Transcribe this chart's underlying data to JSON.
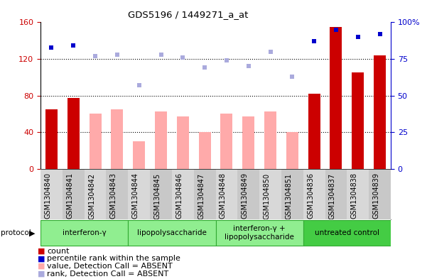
{
  "title": "GDS5196 / 1449271_a_at",
  "samples": [
    "GSM1304840",
    "GSM1304841",
    "GSM1304842",
    "GSM1304843",
    "GSM1304844",
    "GSM1304845",
    "GSM1304846",
    "GSM1304847",
    "GSM1304848",
    "GSM1304849",
    "GSM1304850",
    "GSM1304851",
    "GSM1304836",
    "GSM1304837",
    "GSM1304838",
    "GSM1304839"
  ],
  "count_values": [
    65,
    77,
    null,
    null,
    null,
    null,
    null,
    null,
    null,
    null,
    null,
    null,
    82,
    155,
    105,
    124
  ],
  "absent_values": [
    null,
    null,
    60,
    65,
    30,
    63,
    57,
    40,
    60,
    57,
    63,
    40,
    null,
    null,
    null,
    null
  ],
  "percentile_rank_pct": [
    83,
    84,
    null,
    null,
    null,
    null,
    null,
    null,
    null,
    null,
    null,
    null,
    87,
    95,
    90,
    92
  ],
  "absent_rank_pct": [
    null,
    null,
    77,
    78,
    57,
    78,
    76,
    69,
    74,
    70,
    80,
    63,
    null,
    null,
    null,
    null
  ],
  "left_ylim": [
    0,
    160
  ],
  "right_ylim": [
    0,
    100
  ],
  "left_yticks": [
    0,
    40,
    80,
    120,
    160
  ],
  "right_yticks": [
    0,
    25,
    50,
    75,
    100
  ],
  "right_yticklabels": [
    "0",
    "25",
    "50",
    "75",
    "100%"
  ],
  "groups": [
    {
      "label": "interferon-γ",
      "start": 0,
      "end": 4,
      "color": "#90ee90"
    },
    {
      "label": "lipopolysaccharide",
      "start": 4,
      "end": 8,
      "color": "#90ee90"
    },
    {
      "label": "interferon-γ +\nlipopolysaccharide",
      "start": 8,
      "end": 12,
      "color": "#90ee90"
    },
    {
      "label": "untreated control",
      "start": 12,
      "end": 16,
      "color": "#44cc44"
    }
  ],
  "bg_color": "#ffffff",
  "plot_bg": "#ffffff",
  "bar_width": 0.55,
  "absent_bar_color": "#ffaaaa",
  "absent_rank_color": "#aaaadd",
  "count_bar_color": "#cc0000",
  "percentile_color": "#0000cc",
  "group_border_color": "#33aa33",
  "tick_label_fontsize": 7.0
}
